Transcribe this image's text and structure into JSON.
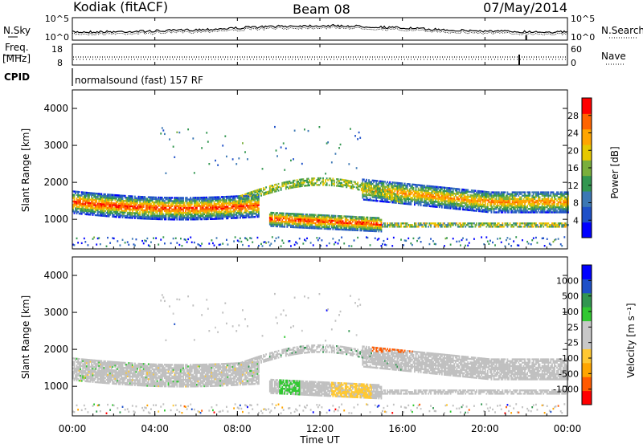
{
  "header": {
    "station": "Kodiak (fitACF)",
    "beam": "Beam 08",
    "date": "07/May/2014"
  },
  "strips": {
    "nsky_label": "N.Sky",
    "nsearch_label": "N.Search",
    "noise_ticks_left": [
      "10^5",
      "10^0"
    ],
    "noise_ticks_right": [
      "10^5",
      "10^0"
    ],
    "freq_label": "Freq.",
    "freq_unit": "[MHz]",
    "freq_ticks": [
      "18",
      "8"
    ],
    "nave_label": "Nave",
    "nave_ticks": [
      "60",
      "0"
    ],
    "cpid_label": "CPID",
    "cpid_text": "normalsound (fast) 157 RF"
  },
  "colors": {
    "power_scale": [
      "#0000ff",
      "#1e50c8",
      "#3c78b4",
      "#329650",
      "#7aaf3c",
      "#e6c800",
      "#ffa500",
      "#ff6400",
      "#ff0000"
    ],
    "velocity_scale": [
      "#ff0000",
      "#ff5a00",
      "#ffa500",
      "#ffc832",
      "#c8c8c8",
      "#c8c8c8",
      "#32c832",
      "#329650",
      "#1e50c8",
      "#0000ff"
    ],
    "background_scatter_gray": "#c0c0c0"
  },
  "chart_data": [
    {
      "type": "heatmap",
      "panel": "power",
      "ylabel": "Slant Range [km]",
      "xlabel": "",
      "ylim": [
        200,
        4500
      ],
      "xlim": [
        0,
        24
      ],
      "yticks": [
        "1000",
        "2000",
        "3000",
        "4000"
      ],
      "xticks": [
        "00:00",
        "04:00",
        "08:00",
        "12:00",
        "16:00",
        "20:00",
        "00:00"
      ],
      "colorbar_label": "Power [dB]",
      "colorbar_ticks": [
        "4",
        "8",
        "12",
        "16",
        "20",
        "24",
        "28"
      ],
      "colorbar_range": [
        0,
        30
      ],
      "features": [
        {
          "t_start": 0,
          "t_end": 9,
          "range_start_km": 1450,
          "range_end_km": 1350,
          "peak_db": 28
        },
        {
          "t_start": 9.5,
          "t_end": 15,
          "range_start_km": 1000,
          "range_end_km": 850,
          "peak_db": 28
        },
        {
          "t_start": 14,
          "t_end": 24,
          "range_start_km": 1800,
          "range_end_km": 1450,
          "peak_db": 24
        }
      ]
    },
    {
      "type": "heatmap",
      "panel": "velocity",
      "ylabel": "Slant Range [km]",
      "xlabel": "Time UT",
      "ylim": [
        200,
        4500
      ],
      "xlim": [
        0,
        24
      ],
      "yticks": [
        "1000",
        "2000",
        "3000",
        "4000"
      ],
      "xticks": [
        "00:00",
        "04:00",
        "08:00",
        "12:00",
        "16:00",
        "20:00",
        "00:00"
      ],
      "colorbar_label": "Velocity [m s⁻¹]",
      "colorbar_ticks": [
        "1000",
        "500",
        "100",
        "25",
        "-25",
        "-100",
        "-500",
        "-1000"
      ],
      "colorbar_range": [
        -1200,
        1200
      ],
      "features": [
        {
          "t_start": 10,
          "t_end": 11,
          "range_km": 1000,
          "velocity_ms": 100
        },
        {
          "t_start": 12.5,
          "t_end": 14.5,
          "range_km": 1000,
          "velocity_ms": -100
        },
        {
          "t_start": 14.5,
          "t_end": 16.5,
          "range_km": 2100,
          "velocity_ms": -500
        }
      ]
    }
  ]
}
